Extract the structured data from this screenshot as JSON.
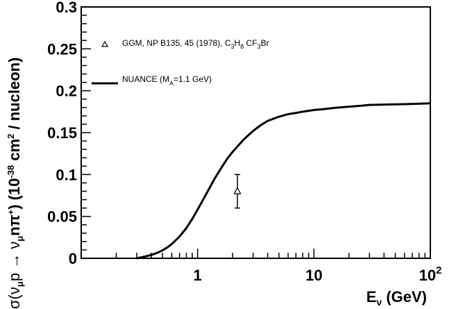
{
  "chart_data": {
    "type": "line",
    "x_scale": "log",
    "xlim": [
      0.1,
      100
    ],
    "ylim": [
      0,
      0.3
    ],
    "grid": false,
    "legend_position": "top-left",
    "x_ticks": [
      {
        "value": 1,
        "label": "1"
      },
      {
        "value": 10,
        "label": "10"
      },
      {
        "value": 100,
        "label": "10",
        "sup": "2"
      }
    ],
    "y_ticks": [
      {
        "value": 0,
        "label": "0"
      },
      {
        "value": 0.05,
        "label": "0.05"
      },
      {
        "value": 0.1,
        "label": "0.1"
      },
      {
        "value": 0.15,
        "label": "0.15"
      },
      {
        "value": 0.2,
        "label": "0.2"
      },
      {
        "value": 0.25,
        "label": "0.25"
      },
      {
        "value": 0.3,
        "label": "0.3"
      }
    ],
    "xlabel": {
      "main": "E",
      "sub": "ν",
      "rest": " (GeV)"
    },
    "ylabel": {
      "p1": "σ(ν",
      "s1": "μ",
      "p2": "p → ν",
      "s2": "μ",
      "p3": "nπ",
      "s3": "+",
      "p4": ") (10",
      "s4": "-38",
      "p5": " cm",
      "s5": "2",
      "p6": " / nucleon)"
    },
    "series": [
      {
        "style": "line",
        "color": "#000000",
        "x": [
          0.3,
          0.35,
          0.4,
          0.45,
          0.5,
          0.55,
          0.6,
          0.7,
          0.8,
          0.9,
          1.0,
          1.2,
          1.4,
          1.6,
          1.8,
          2.0,
          2.5,
          3.0,
          3.5,
          4.0,
          5.0,
          6.0,
          7.0,
          8.0,
          10,
          12,
          15,
          20,
          25,
          30,
          40,
          50,
          60,
          80,
          100
        ],
        "y": [
          0.0,
          0.002,
          0.004,
          0.0065,
          0.0095,
          0.013,
          0.017,
          0.026,
          0.036,
          0.047,
          0.058,
          0.078,
          0.095,
          0.108,
          0.119,
          0.127,
          0.142,
          0.152,
          0.159,
          0.164,
          0.169,
          0.172,
          0.1735,
          0.175,
          0.177,
          0.178,
          0.1795,
          0.181,
          0.182,
          0.183,
          0.1835,
          0.1838,
          0.184,
          0.1845,
          0.185
        ]
      },
      {
        "style": "points",
        "marker": "open-triangle",
        "x": [
          2.2
        ],
        "y": [
          0.08
        ],
        "yerr_low": [
          0.06
        ],
        "yerr_high": [
          0.1
        ]
      }
    ],
    "legend": {
      "gg": {
        "t1": "GGM, NP B135, 45 (1978), C",
        "s1": "3",
        "t2": "H",
        "s2": "8",
        "t3": " CF",
        "s3": "3",
        "t4": "Br"
      },
      "nuance": {
        "t1": "NUANCE (M",
        "s1": "A",
        "t2": "=1.1 GeV)"
      }
    }
  }
}
